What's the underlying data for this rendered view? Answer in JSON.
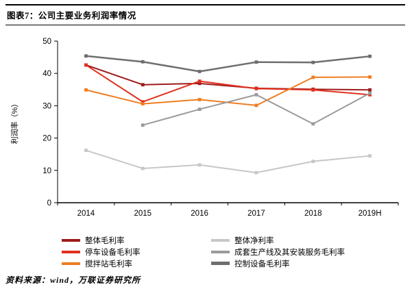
{
  "header": {
    "title": "图表7：公司主要业务利润率情况"
  },
  "footer": {
    "source": "资料来源：wind，万联证券研究所"
  },
  "chart_data": {
    "type": "line",
    "title": "图表7：公司主要业务利润率情况",
    "categories": [
      "2014",
      "2015",
      "2016",
      "2017",
      "2018",
      "2019H"
    ],
    "xlabel": "",
    "ylabel": "利润率（%）",
    "ylim": [
      0,
      50
    ],
    "yticks": [
      0,
      10,
      20,
      30,
      40,
      50
    ],
    "grid": false,
    "legend_position": "bottom",
    "legend_columns": [
      [
        0,
        1,
        2
      ],
      [
        3,
        4,
        5
      ]
    ],
    "series": [
      {
        "name": "整体毛利率",
        "color": "#9E1B1B",
        "width": 2,
        "values": [
          42.6,
          36.5,
          36.9,
          35.4,
          35.1,
          34.9
        ]
      },
      {
        "name": "停车设备毛利率",
        "color": "#E0301E",
        "width": 2,
        "values": [
          42.6,
          31.2,
          37.6,
          35.3,
          34.9,
          33.4
        ]
      },
      {
        "name": "搅拌站毛利率",
        "color": "#EF7D21",
        "width": 2,
        "values": [
          34.9,
          30.6,
          31.9,
          30.1,
          38.8,
          38.9
        ]
      },
      {
        "name": "整体净利率",
        "color": "#C7C7C7",
        "width": 2,
        "values": [
          16.2,
          10.6,
          11.7,
          9.3,
          12.8,
          14.5
        ]
      },
      {
        "name": "成套生产线及其安装服务毛利率",
        "color": "#9A9A9A",
        "width": 2,
        "values": [
          null,
          24.0,
          28.9,
          33.4,
          24.4,
          33.9
        ]
      },
      {
        "name": "控制设备毛利率",
        "color": "#6E6E6E",
        "width": 2.5,
        "values": [
          45.4,
          43.6,
          40.6,
          43.5,
          43.4,
          45.3
        ]
      }
    ]
  }
}
